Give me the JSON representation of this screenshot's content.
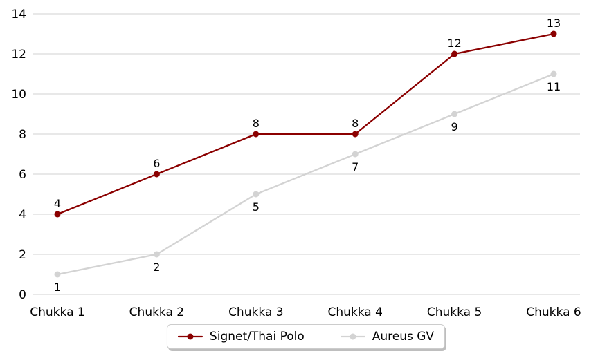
{
  "chart_data": {
    "type": "line",
    "title": "",
    "xlabel": "",
    "ylabel": "",
    "categories": [
      "Chukka 1",
      "Chukka 2",
      "Chukka 3",
      "Chukka 4",
      "Chukka 5",
      "Chukka 6"
    ],
    "series": [
      {
        "name": "Signet/Thai Polo",
        "color": "#8B0000",
        "values": [
          4,
          6,
          8,
          8,
          12,
          13
        ],
        "label_position": "above"
      },
      {
        "name": "Aureus GV",
        "color": "#D3D3D3",
        "values": [
          1,
          2,
          5,
          7,
          9,
          11
        ],
        "label_position": "below"
      }
    ],
    "ylim": [
      0,
      14
    ],
    "yticks": [
      0,
      2,
      4,
      6,
      8,
      10,
      12,
      14
    ],
    "grid": true,
    "legend_position": "bottom-center",
    "colors": {
      "background": "#ffffff",
      "grid": "#d9d9d9",
      "text": "#000000"
    }
  }
}
